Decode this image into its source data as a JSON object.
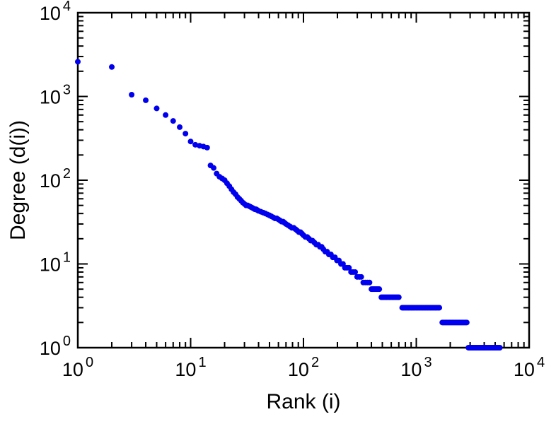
{
  "chart_data": {
    "type": "scatter",
    "title": "",
    "xlabel": "Rank (i)",
    "ylabel": "Degree (d(i))",
    "x_scale": "log",
    "y_scale": "log",
    "xlim": [
      1,
      10000
    ],
    "ylim": [
      1,
      10000
    ],
    "grid": false,
    "legend": "none",
    "marker": {
      "shape": "circle",
      "color": "#0000ee",
      "radius": 4
    },
    "style": {
      "axis_color": "#000000",
      "text_color": "#000000",
      "background": "#ffffff"
    },
    "x_ticks": [
      {
        "value": 1,
        "base": "10",
        "exp": "0"
      },
      {
        "value": 10,
        "base": "10",
        "exp": "1"
      },
      {
        "value": 100,
        "base": "10",
        "exp": "2"
      },
      {
        "value": 1000,
        "base": "10",
        "exp": "3"
      },
      {
        "value": 10000,
        "base": "10",
        "exp": "4"
      }
    ],
    "y_ticks": [
      {
        "value": 1,
        "base": "10",
        "exp": "0"
      },
      {
        "value": 10,
        "base": "10",
        "exp": "1"
      },
      {
        "value": 100,
        "base": "10",
        "exp": "2"
      },
      {
        "value": 1000,
        "base": "10",
        "exp": "3"
      },
      {
        "value": 10000,
        "base": "10",
        "exp": "4"
      }
    ],
    "points": [
      [
        1,
        2600
      ],
      [
        2,
        2250
      ],
      [
        3,
        1050
      ],
      [
        4,
        900
      ],
      [
        5,
        720
      ],
      [
        6,
        600
      ],
      [
        7,
        510
      ],
      [
        8,
        430
      ],
      [
        9,
        360
      ],
      [
        10,
        290
      ],
      [
        11,
        265
      ],
      [
        12,
        258
      ],
      [
        13,
        252
      ],
      [
        14,
        245
      ],
      [
        15,
        150
      ],
      [
        16,
        140
      ],
      [
        17,
        120
      ],
      [
        18,
        110
      ],
      [
        19,
        105
      ],
      [
        20,
        100
      ],
      [
        21,
        92
      ],
      [
        22,
        85
      ],
      [
        23,
        78
      ],
      [
        24,
        72
      ],
      [
        25,
        68
      ],
      [
        26,
        63
      ],
      [
        27,
        60
      ],
      [
        28,
        57
      ],
      [
        29,
        54
      ],
      [
        30,
        52
      ],
      [
        31,
        50
      ],
      [
        32,
        50
      ],
      [
        33,
        49
      ],
      [
        34,
        48
      ],
      [
        35,
        47
      ],
      [
        36,
        46
      ],
      [
        37,
        45
      ],
      [
        38,
        45
      ],
      [
        39,
        44
      ],
      [
        40,
        43
      ],
      [
        42,
        42
      ],
      [
        44,
        41
      ],
      [
        46,
        40
      ],
      [
        48,
        39
      ],
      [
        50,
        38
      ],
      [
        52,
        37
      ],
      [
        54,
        36
      ],
      [
        56,
        35
      ],
      [
        58,
        35
      ],
      [
        60,
        34
      ],
      [
        62,
        33
      ],
      [
        64,
        32
      ],
      [
        66,
        32
      ],
      [
        68,
        31
      ],
      [
        70,
        30
      ],
      [
        73,
        29
      ],
      [
        76,
        28
      ],
      [
        79,
        27
      ],
      [
        82,
        27
      ],
      [
        85,
        26
      ],
      [
        88,
        25
      ],
      [
        91,
        24
      ],
      [
        94,
        24
      ],
      [
        97,
        23
      ],
      [
        100,
        22
      ],
      [
        104,
        21
      ],
      [
        108,
        21
      ],
      [
        112,
        20
      ],
      [
        116,
        19
      ],
      [
        120,
        19
      ],
      [
        125,
        18
      ],
      [
        130,
        17
      ],
      [
        135,
        17
      ],
      [
        140,
        16
      ],
      [
        145,
        16
      ],
      [
        150,
        15
      ],
      [
        156,
        14
      ],
      [
        162,
        14
      ],
      [
        168,
        13
      ],
      [
        175,
        13
      ],
      [
        182,
        12
      ],
      [
        190,
        12
      ],
      [
        198,
        11
      ],
      [
        206,
        11
      ],
      [
        215,
        10
      ],
      [
        224,
        10
      ],
      [
        233,
        9
      ],
      [
        243,
        9
      ],
      [
        253,
        9
      ],
      [
        264,
        8
      ],
      [
        275,
        8
      ],
      [
        287,
        8
      ],
      [
        299,
        7
      ],
      [
        312,
        7
      ],
      [
        325,
        7
      ],
      [
        339,
        6
      ],
      [
        354,
        6
      ],
      [
        369,
        6
      ],
      [
        385,
        6
      ]
    ],
    "plateaus": [
      {
        "degree": 5,
        "from": 400,
        "to": 470,
        "count": 8
      },
      {
        "degree": 4,
        "from": 490,
        "to": 700,
        "count": 14
      },
      {
        "degree": 3,
        "from": 750,
        "to": 1600,
        "count": 30
      },
      {
        "degree": 2,
        "from": 1700,
        "to": 2800,
        "count": 28
      },
      {
        "degree": 1,
        "from": 2900,
        "to": 5500,
        "count": 36
      }
    ]
  }
}
